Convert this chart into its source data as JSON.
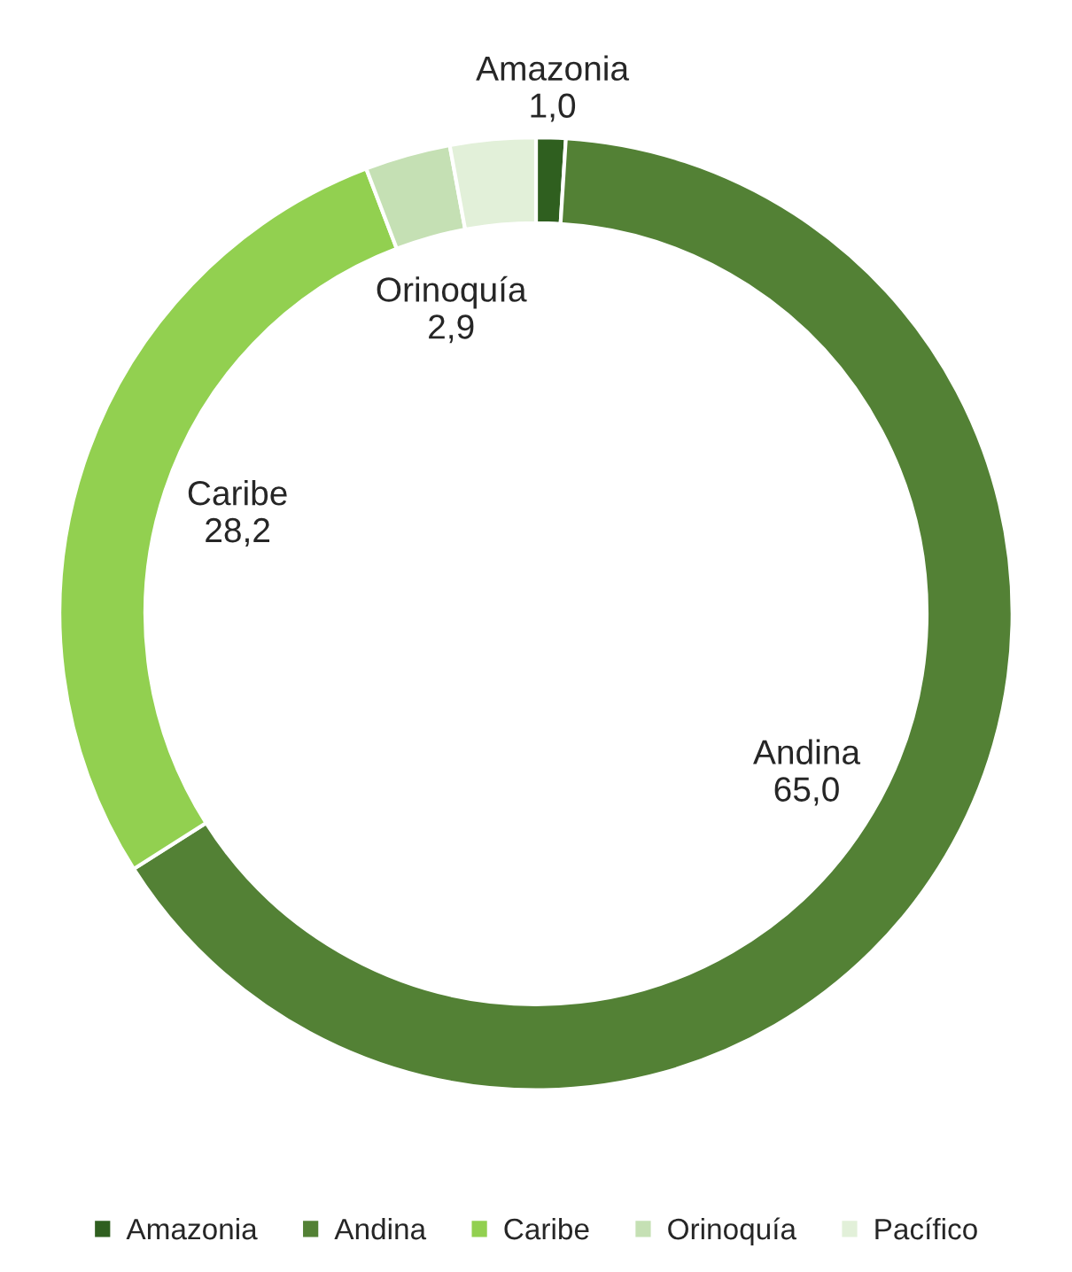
{
  "chart_data": {
    "type": "donut",
    "categories": [
      "Amazonia",
      "Andina",
      "Caribe",
      "Orinoquía",
      "Pacífico"
    ],
    "values": [
      1.0,
      65.0,
      28.2,
      2.9,
      2.9
    ],
    "value_labels": [
      "1,0",
      "65,0",
      "28,2",
      "2,9",
      null
    ],
    "colors": [
      "#2f5f1f",
      "#538135",
      "#92d050",
      "#c5e0b4",
      "#e2f0d9"
    ],
    "legend": "bottom"
  }
}
